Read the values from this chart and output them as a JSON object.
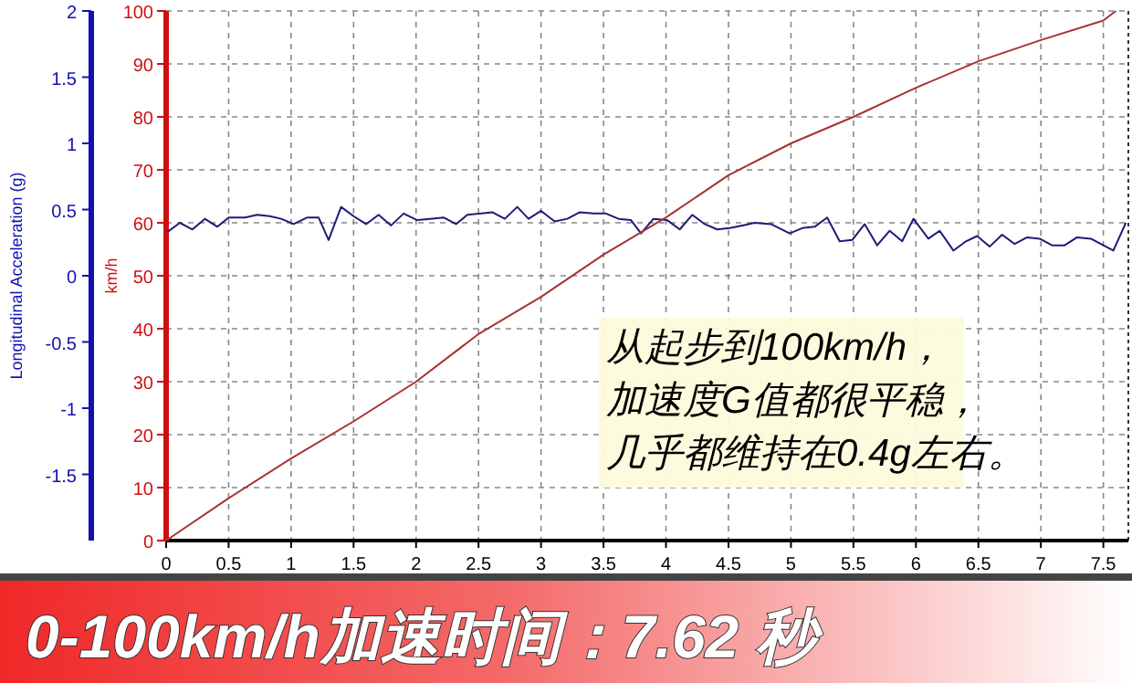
{
  "chart_data": {
    "type": "line",
    "title": "0-100km/h加速时间：7.62 秒",
    "ylabel": "Longitudinal Acceleration (g)",
    "y2label": "km/h",
    "annotations": [
      "从起步到100km/h，",
      "加速度G值都很平稳，",
      "几乎都维持在0.4g左右。"
    ],
    "xlim": [
      0,
      7.7
    ],
    "xticks": [
      0,
      0.5,
      1,
      1.5,
      2,
      2.5,
      3,
      3.5,
      4,
      4.5,
      5,
      5.5,
      6,
      6.5,
      7,
      7.5
    ],
    "ylim": [
      -2,
      2
    ],
    "yticks": [
      2,
      1.5,
      1,
      0.5,
      0,
      -0.5,
      -1,
      -1.5
    ],
    "y2lim": [
      0,
      100
    ],
    "y2ticks": [
      0,
      10,
      20,
      30,
      40,
      50,
      60,
      70,
      80,
      90,
      100
    ],
    "grid": true,
    "line_style": "solid",
    "series": [
      {
        "color": "#1c1c78",
        "x": [
          0.01,
          0.11,
          0.21,
          0.31,
          0.41,
          0.5,
          0.63,
          0.73,
          0.83,
          0.92,
          1.02,
          1.13,
          1.22,
          1.3,
          1.4,
          1.5,
          1.6,
          1.7,
          1.8,
          1.9,
          2.01,
          2.11,
          2.22,
          2.32,
          2.41,
          2.52,
          2.61,
          2.71,
          2.81,
          2.9,
          3.0,
          3.11,
          3.21,
          3.31,
          3.42,
          3.52,
          3.62,
          3.72,
          3.8,
          3.9,
          4.01,
          4.11,
          4.21,
          4.31,
          4.41,
          4.51,
          4.61,
          4.71,
          4.84,
          4.99,
          5.09,
          5.19,
          5.29,
          5.39,
          5.49,
          5.59,
          5.69,
          5.79,
          5.89,
          5.98,
          6.1,
          6.19,
          6.3,
          6.4,
          6.49,
          6.59,
          6.69,
          6.79,
          6.89,
          6.99,
          7.09,
          7.19,
          7.29,
          7.4,
          7.5,
          7.58,
          7.68
        ],
        "values": [
          0.33,
          0.4,
          0.35,
          0.43,
          0.37,
          0.44,
          0.44,
          0.46,
          0.45,
          0.43,
          0.39,
          0.44,
          0.44,
          0.27,
          0.52,
          0.45,
          0.39,
          0.46,
          0.38,
          0.47,
          0.42,
          0.43,
          0.44,
          0.39,
          0.46,
          0.47,
          0.48,
          0.43,
          0.52,
          0.43,
          0.49,
          0.41,
          0.43,
          0.48,
          0.47,
          0.47,
          0.43,
          0.42,
          0.32,
          0.43,
          0.42,
          0.35,
          0.46,
          0.39,
          0.35,
          0.36,
          0.38,
          0.4,
          0.39,
          0.32,
          0.36,
          0.37,
          0.44,
          0.26,
          0.27,
          0.39,
          0.23,
          0.34,
          0.26,
          0.43,
          0.28,
          0.34,
          0.19,
          0.26,
          0.3,
          0.22,
          0.31,
          0.24,
          0.29,
          0.28,
          0.23,
          0.23,
          0.29,
          0.28,
          0.23,
          0.19,
          0.4
        ]
      },
      {
        "color": "#a83232",
        "axis": "y2",
        "x": [
          0,
          0.5,
          1,
          1.5,
          2,
          2.5,
          3,
          3.5,
          4,
          4.5,
          5,
          5.5,
          6,
          6.5,
          7,
          7.5,
          7.6
        ],
        "values": [
          0,
          8,
          15.5,
          22.5,
          30,
          39,
          46,
          54,
          61,
          69,
          75,
          80,
          85.5,
          90.5,
          94.5,
          98.2,
          100
        ]
      }
    ]
  }
}
